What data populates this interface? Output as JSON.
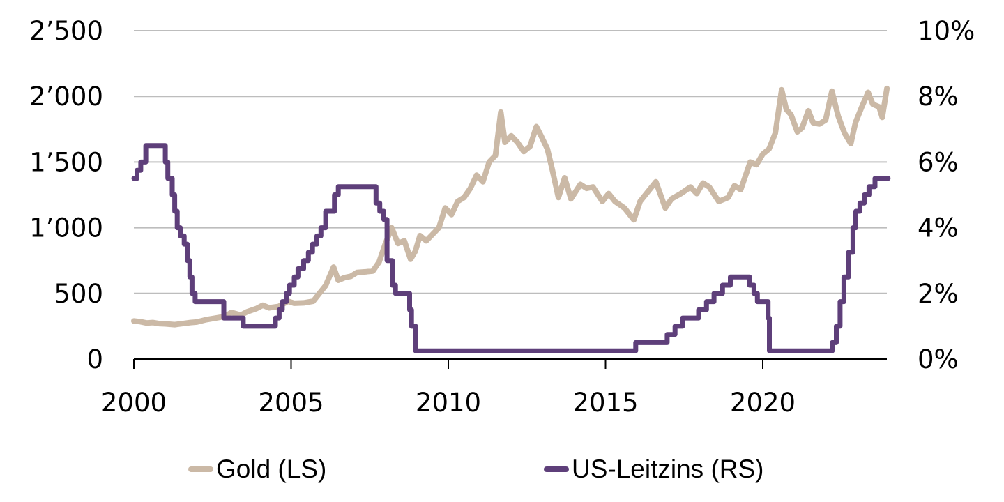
{
  "chart_data": {
    "type": "line",
    "title": "",
    "xlabel": "",
    "ylabel_left": "",
    "ylabel_right": "",
    "x_range": [
      2000,
      2024
    ],
    "x_ticks": [
      2000,
      2005,
      2010,
      2015,
      2020
    ],
    "x_tick_labels": [
      "2000",
      "2005",
      "2010",
      "2015",
      "2020"
    ],
    "y_left": {
      "range": [
        0,
        2500
      ],
      "ticks": [
        0,
        500,
        1000,
        1500,
        2000,
        2500
      ],
      "tick_labels": [
        "0",
        "500",
        "1’000",
        "1’500",
        "2’000",
        "2’500"
      ]
    },
    "y_right": {
      "range": [
        0,
        10
      ],
      "ticks": [
        0,
        2,
        4,
        6,
        8,
        10
      ],
      "tick_labels": [
        "0%",
        "2%",
        "4%",
        "6%",
        "8%",
        "10%"
      ]
    },
    "grid": true,
    "legend_position": "bottom",
    "colors": {
      "gold": "#cbb9a6",
      "rate": "#5e3f7a",
      "grid": "#bdbdbd",
      "axis": "#000000"
    },
    "series": [
      {
        "name": "Gold (LS)",
        "axis": "left",
        "step": false,
        "points": [
          [
            2000.0,
            290
          ],
          [
            2000.2,
            285
          ],
          [
            2000.4,
            275
          ],
          [
            2000.6,
            278
          ],
          [
            2000.8,
            270
          ],
          [
            2001.0,
            268
          ],
          [
            2001.3,
            262
          ],
          [
            2001.6,
            272
          ],
          [
            2001.8,
            278
          ],
          [
            2002.0,
            282
          ],
          [
            2002.3,
            300
          ],
          [
            2002.6,
            312
          ],
          [
            2002.9,
            325
          ],
          [
            2003.1,
            355
          ],
          [
            2003.4,
            335
          ],
          [
            2003.6,
            360
          ],
          [
            2003.9,
            385
          ],
          [
            2004.1,
            410
          ],
          [
            2004.3,
            390
          ],
          [
            2004.6,
            400
          ],
          [
            2004.9,
            440
          ],
          [
            2005.1,
            425
          ],
          [
            2005.4,
            428
          ],
          [
            2005.7,
            440
          ],
          [
            2005.9,
            500
          ],
          [
            2006.1,
            560
          ],
          [
            2006.35,
            700
          ],
          [
            2006.5,
            600
          ],
          [
            2006.7,
            620
          ],
          [
            2006.9,
            630
          ],
          [
            2007.1,
            660
          ],
          [
            2007.4,
            665
          ],
          [
            2007.6,
            670
          ],
          [
            2007.8,
            740
          ],
          [
            2008.0,
            880
          ],
          [
            2008.2,
            1000
          ],
          [
            2008.4,
            880
          ],
          [
            2008.6,
            900
          ],
          [
            2008.8,
            760
          ],
          [
            2008.95,
            820
          ],
          [
            2009.1,
            940
          ],
          [
            2009.3,
            900
          ],
          [
            2009.5,
            950
          ],
          [
            2009.7,
            1000
          ],
          [
            2009.9,
            1150
          ],
          [
            2010.1,
            1100
          ],
          [
            2010.3,
            1200
          ],
          [
            2010.5,
            1230
          ],
          [
            2010.7,
            1300
          ],
          [
            2010.9,
            1400
          ],
          [
            2011.1,
            1350
          ],
          [
            2011.3,
            1500
          ],
          [
            2011.5,
            1550
          ],
          [
            2011.67,
            1880
          ],
          [
            2011.8,
            1650
          ],
          [
            2012.0,
            1700
          ],
          [
            2012.2,
            1650
          ],
          [
            2012.4,
            1580
          ],
          [
            2012.6,
            1620
          ],
          [
            2012.8,
            1770
          ],
          [
            2012.95,
            1700
          ],
          [
            2013.15,
            1600
          ],
          [
            2013.3,
            1450
          ],
          [
            2013.5,
            1230
          ],
          [
            2013.7,
            1380
          ],
          [
            2013.9,
            1220
          ],
          [
            2014.2,
            1330
          ],
          [
            2014.4,
            1300
          ],
          [
            2014.6,
            1310
          ],
          [
            2014.9,
            1200
          ],
          [
            2015.1,
            1260
          ],
          [
            2015.3,
            1200
          ],
          [
            2015.6,
            1150
          ],
          [
            2015.9,
            1060
          ],
          [
            2016.1,
            1200
          ],
          [
            2016.3,
            1260
          ],
          [
            2016.6,
            1350
          ],
          [
            2016.9,
            1150
          ],
          [
            2017.1,
            1220
          ],
          [
            2017.4,
            1260
          ],
          [
            2017.7,
            1310
          ],
          [
            2017.9,
            1260
          ],
          [
            2018.1,
            1340
          ],
          [
            2018.3,
            1310
          ],
          [
            2018.6,
            1200
          ],
          [
            2018.9,
            1230
          ],
          [
            2019.1,
            1320
          ],
          [
            2019.3,
            1290
          ],
          [
            2019.6,
            1500
          ],
          [
            2019.8,
            1480
          ],
          [
            2020.0,
            1560
          ],
          [
            2020.2,
            1600
          ],
          [
            2020.4,
            1720
          ],
          [
            2020.6,
            2050
          ],
          [
            2020.75,
            1900
          ],
          [
            2020.9,
            1860
          ],
          [
            2021.1,
            1730
          ],
          [
            2021.25,
            1760
          ],
          [
            2021.45,
            1890
          ],
          [
            2021.6,
            1800
          ],
          [
            2021.8,
            1790
          ],
          [
            2022.0,
            1820
          ],
          [
            2022.2,
            2040
          ],
          [
            2022.4,
            1850
          ],
          [
            2022.6,
            1720
          ],
          [
            2022.8,
            1640
          ],
          [
            2022.95,
            1800
          ],
          [
            2023.15,
            1920
          ],
          [
            2023.35,
            2030
          ],
          [
            2023.5,
            1940
          ],
          [
            2023.7,
            1920
          ],
          [
            2023.8,
            1840
          ],
          [
            2023.95,
            2060
          ]
        ]
      },
      {
        "name": "US-Leitzins (RS)",
        "axis": "right",
        "step": true,
        "points": [
          [
            2000.0,
            5.5
          ],
          [
            2000.1,
            5.75
          ],
          [
            2000.22,
            6.0
          ],
          [
            2000.38,
            6.5
          ],
          [
            2001.0,
            6.0
          ],
          [
            2001.08,
            5.5
          ],
          [
            2001.22,
            5.0
          ],
          [
            2001.3,
            4.5
          ],
          [
            2001.38,
            4.0
          ],
          [
            2001.48,
            3.75
          ],
          [
            2001.6,
            3.5
          ],
          [
            2001.7,
            3.0
          ],
          [
            2001.78,
            2.5
          ],
          [
            2001.85,
            2.0
          ],
          [
            2001.95,
            1.75
          ],
          [
            2002.86,
            1.25
          ],
          [
            2003.48,
            1.0
          ],
          [
            2004.5,
            1.25
          ],
          [
            2004.62,
            1.5
          ],
          [
            2004.72,
            1.75
          ],
          [
            2004.85,
            2.0
          ],
          [
            2004.95,
            2.25
          ],
          [
            2005.1,
            2.5
          ],
          [
            2005.22,
            2.75
          ],
          [
            2005.4,
            3.0
          ],
          [
            2005.55,
            3.25
          ],
          [
            2005.68,
            3.5
          ],
          [
            2005.82,
            3.75
          ],
          [
            2005.95,
            4.0
          ],
          [
            2006.1,
            4.5
          ],
          [
            2006.38,
            5.0
          ],
          [
            2006.5,
            5.25
          ],
          [
            2007.7,
            4.75
          ],
          [
            2007.82,
            4.5
          ],
          [
            2007.95,
            4.25
          ],
          [
            2008.05,
            3.0
          ],
          [
            2008.22,
            2.25
          ],
          [
            2008.32,
            2.0
          ],
          [
            2008.77,
            1.5
          ],
          [
            2008.83,
            1.0
          ],
          [
            2008.96,
            0.25
          ],
          [
            2015.96,
            0.5
          ],
          [
            2016.96,
            0.75
          ],
          [
            2017.21,
            1.0
          ],
          [
            2017.45,
            1.25
          ],
          [
            2017.96,
            1.5
          ],
          [
            2018.21,
            1.75
          ],
          [
            2018.45,
            2.0
          ],
          [
            2018.72,
            2.25
          ],
          [
            2018.97,
            2.5
          ],
          [
            2019.58,
            2.25
          ],
          [
            2019.72,
            2.0
          ],
          [
            2019.83,
            1.75
          ],
          [
            2020.17,
            1.25
          ],
          [
            2020.21,
            0.25
          ],
          [
            2022.21,
            0.5
          ],
          [
            2022.34,
            1.0
          ],
          [
            2022.46,
            1.75
          ],
          [
            2022.58,
            2.5
          ],
          [
            2022.73,
            3.25
          ],
          [
            2022.87,
            4.0
          ],
          [
            2022.96,
            4.5
          ],
          [
            2023.09,
            4.75
          ],
          [
            2023.23,
            5.0
          ],
          [
            2023.38,
            5.25
          ],
          [
            2023.57,
            5.5
          ],
          [
            2023.99,
            5.5
          ]
        ]
      }
    ]
  },
  "legend": {
    "items": [
      {
        "label": "Gold (LS)",
        "color": "#cbb9a6"
      },
      {
        "label": "US-Leitzins (RS)",
        "color": "#5e3f7a"
      }
    ]
  }
}
